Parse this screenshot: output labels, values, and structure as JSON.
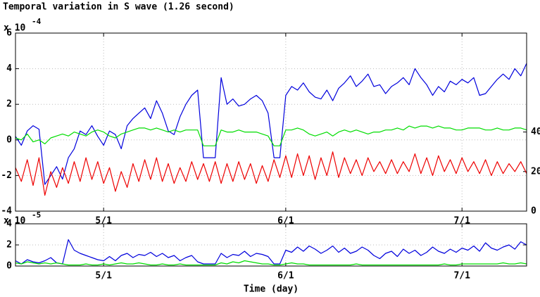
{
  "chart_data": [
    {
      "type": "line",
      "title": "Temporal variation in S wave (1.26 second)",
      "y_scale_base": "x 10",
      "y_scale_exponent": "-4",
      "x": [
        106,
        107,
        108,
        109,
        110,
        111,
        112,
        113,
        114,
        115,
        116,
        117,
        118,
        119,
        120,
        121,
        122,
        123,
        124,
        125,
        126,
        127,
        128,
        129,
        130,
        131,
        132,
        133,
        134,
        135,
        136,
        137,
        138,
        139,
        140,
        141,
        142,
        143,
        144,
        145,
        146,
        147,
        148,
        149,
        150,
        151,
        152,
        153,
        154,
        155,
        156,
        157,
        158,
        159,
        160,
        161,
        162,
        163,
        164,
        165,
        166,
        167,
        168,
        169,
        170,
        171,
        172,
        173,
        174,
        175,
        176,
        177,
        178,
        179,
        180,
        181,
        182,
        183,
        184,
        185,
        186,
        187,
        188,
        189,
        190,
        191,
        192,
        193
      ],
      "xlim": [
        106,
        193
      ],
      "xticks": [
        {
          "value": 121,
          "label": "5/1"
        },
        {
          "value": 152,
          "label": "6/1"
        },
        {
          "value": 182,
          "label": "7/1"
        }
      ],
      "ylim": [
        -4,
        6
      ],
      "yticks": [
        -4,
        -2,
        0,
        2,
        4,
        6
      ],
      "y2lim": [
        0,
        90
      ],
      "y2ticks": [
        0,
        20,
        40
      ],
      "grid": true,
      "series": [
        {
          "color": "#0000dd",
          "values": [
            0.2,
            -0.3,
            0.5,
            0.8,
            0.6,
            -2.5,
            -2,
            -1.5,
            -2.2,
            -1,
            -0.5,
            0.5,
            0.3,
            0.8,
            0.2,
            -0.3,
            0.5,
            0.3,
            -0.5,
            0.8,
            1.2,
            1.5,
            1.8,
            1.2,
            2.2,
            1.5,
            0.5,
            0.3,
            1.3,
            2.0,
            2.5,
            2.8,
            -1,
            -1,
            -1,
            3.5,
            2.0,
            2.3,
            1.9,
            2.0,
            2.3,
            2.5,
            2.2,
            1.5,
            -1,
            -1,
            2.5,
            3.0,
            2.8,
            3.2,
            2.7,
            2.4,
            2.3,
            2.8,
            2.2,
            2.9,
            3.2,
            3.6,
            3.0,
            3.3,
            3.7,
            3.0,
            3.1,
            2.6,
            3.0,
            3.2,
            3.5,
            3.1,
            4.0,
            3.5,
            3.1,
            2.5,
            3.0,
            2.7,
            3.3,
            3.1,
            3.4,
            3.2,
            3.5,
            2.5,
            2.6,
            3.0,
            3.4,
            3.7,
            3.4,
            4.0,
            3.6,
            4.3
          ]
        },
        {
          "color": "#00dd00",
          "axis": "y2",
          "values": [
            37,
            36,
            39,
            35,
            36,
            34,
            37,
            38,
            39,
            38,
            40,
            39,
            38,
            40,
            41,
            40,
            38,
            37,
            39,
            40,
            41,
            42,
            42,
            41,
            42,
            41,
            40,
            41,
            40,
            41,
            41,
            41,
            33,
            33,
            33,
            41,
            40,
            40,
            41,
            40,
            40,
            40,
            39,
            38,
            33,
            33,
            41,
            41,
            42,
            41,
            39,
            38,
            39,
            40,
            38,
            40,
            41,
            40,
            41,
            40,
            39,
            40,
            40,
            41,
            41,
            42,
            41,
            43,
            42,
            43,
            43,
            42,
            43,
            42,
            42,
            41,
            41,
            42,
            42,
            42,
            41,
            41,
            42,
            41,
            41,
            42,
            42,
            41
          ]
        },
        {
          "color": "#ee0000",
          "axis": "y2",
          "values": [
            22,
            15,
            26,
            13,
            27,
            8,
            20,
            12,
            22,
            14,
            25,
            15,
            27,
            16,
            25,
            14,
            22,
            10,
            20,
            12,
            24,
            15,
            26,
            16,
            27,
            15,
            24,
            14,
            22,
            15,
            25,
            16,
            24,
            15,
            25,
            14,
            24,
            15,
            25,
            16,
            24,
            14,
            23,
            15,
            26,
            17,
            28,
            17,
            29,
            18,
            28,
            16,
            27,
            18,
            30,
            17,
            27,
            19,
            26,
            18,
            27,
            20,
            25,
            19,
            26,
            19,
            25,
            20,
            29,
            19,
            27,
            18,
            28,
            20,
            26,
            19,
            27,
            20,
            25,
            19,
            26,
            18,
            25,
            19,
            24,
            20,
            25,
            19
          ]
        }
      ]
    },
    {
      "type": "line",
      "xlabel": "Time (day)",
      "y_scale_base": "x 10",
      "y_scale_exponent": "-5",
      "x": [
        106,
        107,
        108,
        109,
        110,
        111,
        112,
        113,
        114,
        115,
        116,
        117,
        118,
        119,
        120,
        121,
        122,
        123,
        124,
        125,
        126,
        127,
        128,
        129,
        130,
        131,
        132,
        133,
        134,
        135,
        136,
        137,
        138,
        139,
        140,
        141,
        142,
        143,
        144,
        145,
        146,
        147,
        148,
        149,
        150,
        151,
        152,
        153,
        154,
        155,
        156,
        157,
        158,
        159,
        160,
        161,
        162,
        163,
        164,
        165,
        166,
        167,
        168,
        169,
        170,
        171,
        172,
        173,
        174,
        175,
        176,
        177,
        178,
        179,
        180,
        181,
        182,
        183,
        184,
        185,
        186,
        187,
        188,
        189,
        190,
        191,
        192,
        193
      ],
      "xlim": [
        106,
        193
      ],
      "xticks": [
        {
          "value": 121,
          "label": "5/1"
        },
        {
          "value": 152,
          "label": "6/1"
        },
        {
          "value": 182,
          "label": "7/1"
        }
      ],
      "ylim": [
        0,
        4
      ],
      "yticks": [
        0,
        2,
        4
      ],
      "grid": true,
      "series": [
        {
          "color": "#0000dd",
          "values": [
            0.5,
            0.2,
            0.6,
            0.4,
            0.3,
            0.5,
            0.8,
            0.3,
            0.2,
            2.5,
            1.5,
            1.2,
            1.0,
            0.8,
            0.6,
            0.5,
            0.9,
            0.5,
            1.0,
            1.2,
            0.8,
            1.1,
            1.0,
            1.3,
            0.9,
            1.2,
            0.8,
            1.0,
            0.5,
            0.8,
            1.0,
            0.4,
            0.2,
            0.2,
            0.2,
            1.2,
            0.8,
            1.1,
            1.0,
            1.4,
            0.9,
            1.2,
            1.1,
            0.9,
            0.2,
            0.2,
            1.5,
            1.3,
            1.8,
            1.4,
            1.9,
            1.6,
            1.2,
            1.5,
            1.9,
            1.3,
            1.7,
            1.2,
            1.4,
            1.8,
            1.5,
            1.0,
            0.7,
            1.2,
            1.4,
            0.9,
            1.6,
            1.2,
            1.5,
            1.0,
            1.3,
            1.8,
            1.4,
            1.2,
            1.6,
            1.3,
            1.7,
            1.5,
            1.9,
            1.4,
            2.2,
            1.7,
            1.5,
            1.8,
            2.0,
            1.6,
            2.3,
            2.0
          ]
        },
        {
          "color": "#00dd00",
          "values": [
            0.3,
            0.2,
            0.4,
            0.3,
            0.2,
            0.3,
            0.2,
            0.3,
            0.2,
            0.1,
            0.1,
            0.1,
            0.2,
            0.1,
            0.1,
            0.2,
            0.1,
            0.2,
            0.3,
            0.2,
            0.2,
            0.3,
            0.2,
            0.1,
            0.1,
            0.2,
            0.1,
            0.1,
            0.2,
            0.1,
            0.1,
            0.1,
            0.1,
            0.1,
            0.1,
            0.3,
            0.2,
            0.4,
            0.3,
            0.5,
            0.4,
            0.3,
            0.2,
            0.2,
            0.1,
            0.1,
            0.2,
            0.3,
            0.2,
            0.2,
            0.1,
            0.1,
            0.1,
            0.1,
            0.1,
            0.1,
            0.1,
            0.1,
            0.2,
            0.1,
            0.1,
            0.1,
            0.1,
            0.1,
            0.1,
            0.1,
            0.1,
            0.1,
            0.1,
            0.1,
            0.1,
            0.1,
            0.1,
            0.2,
            0.1,
            0.1,
            0.2,
            0.2,
            0.2,
            0.2,
            0.2,
            0.2,
            0.2,
            0.3,
            0.2,
            0.2,
            0.3,
            0.2
          ]
        }
      ]
    }
  ]
}
